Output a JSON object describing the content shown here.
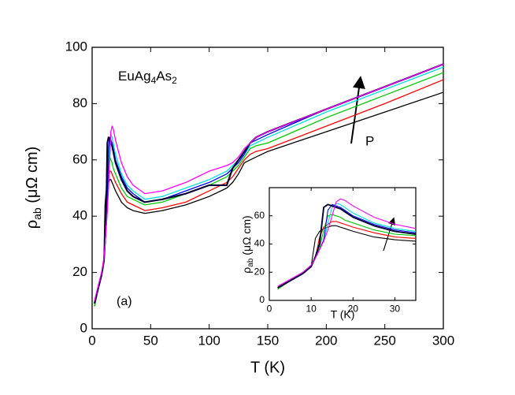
{
  "chart_data": [
    {
      "type": "line",
      "title": [
        "EuAg",
        "4",
        "As",
        "2"
      ],
      "panel_label": "(a)",
      "annotation": "P",
      "x_label": "T (K)",
      "y_label": [
        "ρ",
        "ab",
        " (μΩ cm)"
      ],
      "xlim": [
        0,
        300
      ],
      "ylim": [
        0,
        100
      ],
      "xticks": [
        0,
        50,
        100,
        150,
        200,
        250,
        300
      ],
      "yticks": [
        0,
        20,
        40,
        60,
        80,
        100
      ],
      "x": [
        2,
        5,
        8,
        10,
        11,
        12,
        13,
        14,
        15,
        16,
        17,
        18,
        20,
        25,
        30,
        35,
        45,
        60,
        80,
        100,
        115,
        120,
        125,
        130,
        135,
        140,
        150,
        200,
        250,
        300
      ],
      "series": [
        {
          "color": "#000000",
          "values": [
            8,
            14,
            19,
            24,
            44,
            49,
            51,
            52,
            53,
            53,
            52,
            51,
            49,
            45,
            43,
            42,
            41,
            42,
            44,
            47,
            50,
            52,
            55,
            59,
            60,
            61,
            63,
            70,
            77,
            84
          ]
        },
        {
          "color": "#ff0000",
          "values": [
            8,
            14,
            19,
            24,
            30,
            45,
            52,
            54,
            56,
            56,
            55,
            54,
            52,
            48,
            45,
            44,
            42,
            43,
            45,
            49,
            52,
            54,
            57,
            60,
            62,
            63,
            64,
            72,
            80,
            88.5
          ]
        },
        {
          "color": "#00cc00",
          "values": [
            8,
            14,
            19,
            24,
            30,
            37,
            50,
            60,
            61,
            60,
            59,
            57,
            55,
            50,
            47,
            46,
            44,
            45,
            48,
            51,
            54,
            56,
            58,
            61,
            64,
            65,
            66,
            75,
            83,
            91
          ]
        },
        {
          "color": "#00e0e0",
          "values": [
            9,
            14,
            19,
            24,
            30,
            36,
            42,
            55,
            66,
            69,
            68,
            66,
            62,
            55,
            51,
            49,
            46,
            47,
            50,
            53,
            56,
            58,
            60,
            62,
            65,
            66,
            68,
            77,
            85,
            93
          ]
        },
        {
          "color": "#0000ff",
          "values": [
            9,
            14,
            19,
            24,
            30,
            36,
            43,
            64,
            68,
            67,
            66,
            64,
            60,
            54,
            50,
            48,
            45,
            46,
            49,
            52,
            55,
            57,
            59,
            62,
            66,
            67,
            69,
            78,
            86,
            94
          ]
        },
        {
          "color": "#000033",
          "values": [
            9,
            14,
            19,
            24,
            31,
            40,
            66,
            68,
            67,
            66,
            65,
            63,
            59,
            53,
            49,
            47,
            45,
            46,
            48,
            51,
            51,
            57,
            60,
            63,
            66,
            68,
            70,
            78,
            86,
            94
          ]
        },
        {
          "color": "#ff00ff",
          "values": [
            10,
            15,
            20,
            25,
            30,
            36,
            42,
            50,
            60,
            70,
            72,
            71,
            67,
            59,
            54,
            51,
            48,
            49,
            52,
            56,
            58,
            59,
            61,
            64,
            66,
            68,
            70,
            78,
            86,
            94
          ]
        }
      ]
    },
    {
      "type": "inset",
      "x_label": "T (K)",
      "y_label": [
        "ρ",
        "ab",
        " (μΩ cm)"
      ],
      "xlim": [
        0,
        35
      ],
      "ylim": [
        0,
        80
      ],
      "xticks": [
        0,
        10,
        20,
        30
      ],
      "yticks": [
        0,
        20,
        40,
        60
      ]
    }
  ]
}
